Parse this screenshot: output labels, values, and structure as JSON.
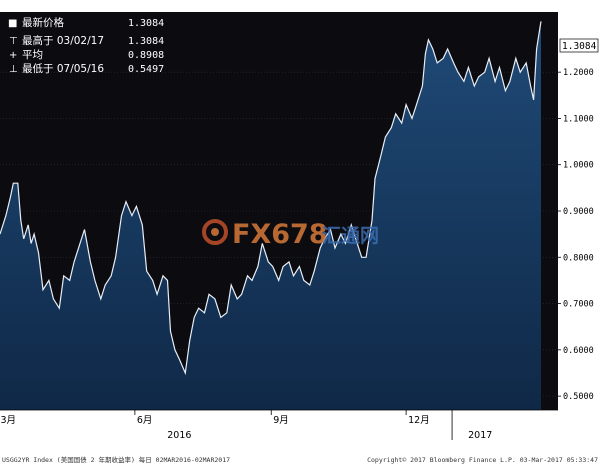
{
  "legend": {
    "rows": [
      {
        "marker": "■",
        "label": "最新价格",
        "value": "1.3084"
      },
      {
        "marker": "⊤",
        "label": "最高于 03/02/17",
        "value": "1.3084"
      },
      {
        "marker": "+",
        "label": "平均",
        "value": "0.8908"
      },
      {
        "marker": "⊥",
        "label": "最低于 07/05/16",
        "value": "0.5497"
      }
    ]
  },
  "watermark": {
    "text_main": "FX678",
    "text_sub": "汇通网"
  },
  "last_price_tag": "1.3084",
  "footer": {
    "left": "USGG2YR Index (美国国债 2 年期收益率)  每日 02MAR2016-02MAR2017",
    "right": "Copyright© 2017 Bloomberg Finance L.P.      03-Mar-2017 05:33:47"
  },
  "colors": {
    "background": "#0c0c10",
    "area_top": "#1d4570",
    "area_bottom": "#0f2a4a",
    "line": "#e8eef6",
    "axis_text": "#ffffff"
  },
  "chart_data": {
    "type": "area",
    "ylim": [
      0.47,
      1.33
    ],
    "yticks": [
      0.5,
      0.6,
      0.7,
      0.8,
      0.9,
      1.0,
      1.1,
      1.2
    ],
    "ytick_labels": [
      "0.5000",
      "0.6000",
      "0.7000",
      "0.8000",
      "0.9000",
      "1.0000",
      "1.1000",
      "1.2000"
    ],
    "x_month_labels": [
      {
        "label": "3月",
        "date": "2016-03-01"
      },
      {
        "label": "6月",
        "date": "2016-06-01"
      },
      {
        "label": "9月",
        "date": "2016-09-01"
      },
      {
        "label": "12月",
        "date": "2016-12-01"
      }
    ],
    "x_year_labels": [
      {
        "label": "2016",
        "date": "2016-07-01"
      },
      {
        "label": "2017",
        "date": "2017-01-20"
      }
    ],
    "year_divider": "2017-01-01",
    "xlim": [
      "2016-03-02",
      "2017-03-02"
    ],
    "series": [
      {
        "values": [
          [
            "2016-03-02",
            0.85
          ],
          [
            "2016-03-06",
            0.89
          ],
          [
            "2016-03-09",
            0.93
          ],
          [
            "2016-03-11",
            0.96
          ],
          [
            "2016-03-14",
            0.96
          ],
          [
            "2016-03-16",
            0.88
          ],
          [
            "2016-03-18",
            0.84
          ],
          [
            "2016-03-21",
            0.87
          ],
          [
            "2016-03-23",
            0.83
          ],
          [
            "2016-03-25",
            0.85
          ],
          [
            "2016-03-28",
            0.81
          ],
          [
            "2016-03-31",
            0.73
          ],
          [
            "2016-04-04",
            0.75
          ],
          [
            "2016-04-07",
            0.71
          ],
          [
            "2016-04-11",
            0.69
          ],
          [
            "2016-04-14",
            0.76
          ],
          [
            "2016-04-18",
            0.75
          ],
          [
            "2016-04-21",
            0.79
          ],
          [
            "2016-04-25",
            0.83
          ],
          [
            "2016-04-28",
            0.86
          ],
          [
            "2016-05-02",
            0.79
          ],
          [
            "2016-05-05",
            0.75
          ],
          [
            "2016-05-09",
            0.71
          ],
          [
            "2016-05-12",
            0.74
          ],
          [
            "2016-05-16",
            0.76
          ],
          [
            "2016-05-19",
            0.8
          ],
          [
            "2016-05-23",
            0.89
          ],
          [
            "2016-05-26",
            0.92
          ],
          [
            "2016-05-30",
            0.89
          ],
          [
            "2016-06-02",
            0.91
          ],
          [
            "2016-06-06",
            0.87
          ],
          [
            "2016-06-09",
            0.77
          ],
          [
            "2016-06-13",
            0.75
          ],
          [
            "2016-06-16",
            0.72
          ],
          [
            "2016-06-20",
            0.76
          ],
          [
            "2016-06-23",
            0.75
          ],
          [
            "2016-06-25",
            0.64
          ],
          [
            "2016-06-28",
            0.6
          ],
          [
            "2016-07-01",
            0.58
          ],
          [
            "2016-07-05",
            0.55
          ],
          [
            "2016-07-08",
            0.62
          ],
          [
            "2016-07-11",
            0.67
          ],
          [
            "2016-07-14",
            0.69
          ],
          [
            "2016-07-18",
            0.68
          ],
          [
            "2016-07-21",
            0.72
          ],
          [
            "2016-07-25",
            0.71
          ],
          [
            "2016-07-29",
            0.67
          ],
          [
            "2016-08-02",
            0.68
          ],
          [
            "2016-08-05",
            0.74
          ],
          [
            "2016-08-09",
            0.71
          ],
          [
            "2016-08-12",
            0.72
          ],
          [
            "2016-08-16",
            0.76
          ],
          [
            "2016-08-19",
            0.75
          ],
          [
            "2016-08-23",
            0.78
          ],
          [
            "2016-08-26",
            0.83
          ],
          [
            "2016-08-30",
            0.79
          ],
          [
            "2016-09-02",
            0.78
          ],
          [
            "2016-09-06",
            0.75
          ],
          [
            "2016-09-09",
            0.78
          ],
          [
            "2016-09-13",
            0.79
          ],
          [
            "2016-09-16",
            0.76
          ],
          [
            "2016-09-20",
            0.78
          ],
          [
            "2016-09-23",
            0.75
          ],
          [
            "2016-09-27",
            0.74
          ],
          [
            "2016-09-30",
            0.77
          ],
          [
            "2016-10-04",
            0.82
          ],
          [
            "2016-10-07",
            0.84
          ],
          [
            "2016-10-11",
            0.86
          ],
          [
            "2016-10-14",
            0.82
          ],
          [
            "2016-10-18",
            0.85
          ],
          [
            "2016-10-21",
            0.83
          ],
          [
            "2016-10-25",
            0.87
          ],
          [
            "2016-10-28",
            0.84
          ],
          [
            "2016-11-01",
            0.8
          ],
          [
            "2016-11-04",
            0.8
          ],
          [
            "2016-11-08",
            0.88
          ],
          [
            "2016-11-10",
            0.97
          ],
          [
            "2016-11-14",
            1.02
          ],
          [
            "2016-11-17",
            1.06
          ],
          [
            "2016-11-21",
            1.08
          ],
          [
            "2016-11-24",
            1.11
          ],
          [
            "2016-11-28",
            1.09
          ],
          [
            "2016-12-01",
            1.13
          ],
          [
            "2016-12-05",
            1.1
          ],
          [
            "2016-12-08",
            1.13
          ],
          [
            "2016-12-12",
            1.17
          ],
          [
            "2016-12-14",
            1.24
          ],
          [
            "2016-12-16",
            1.27
          ],
          [
            "2016-12-19",
            1.25
          ],
          [
            "2016-12-22",
            1.22
          ],
          [
            "2016-12-26",
            1.23
          ],
          [
            "2016-12-29",
            1.25
          ],
          [
            "2017-01-02",
            1.22
          ],
          [
            "2017-01-05",
            1.2
          ],
          [
            "2017-01-09",
            1.18
          ],
          [
            "2017-01-12",
            1.21
          ],
          [
            "2017-01-16",
            1.17
          ],
          [
            "2017-01-19",
            1.19
          ],
          [
            "2017-01-23",
            1.2
          ],
          [
            "2017-01-26",
            1.23
          ],
          [
            "2017-01-30",
            1.18
          ],
          [
            "2017-02-02",
            1.21
          ],
          [
            "2017-02-06",
            1.16
          ],
          [
            "2017-02-09",
            1.18
          ],
          [
            "2017-02-13",
            1.23
          ],
          [
            "2017-02-16",
            1.2
          ],
          [
            "2017-02-20",
            1.22
          ],
          [
            "2017-02-23",
            1.17
          ],
          [
            "2017-02-25",
            1.14
          ],
          [
            "2017-02-27",
            1.25
          ],
          [
            "2017-03-01",
            1.29
          ],
          [
            "2017-03-02",
            1.31
          ]
        ]
      }
    ]
  }
}
